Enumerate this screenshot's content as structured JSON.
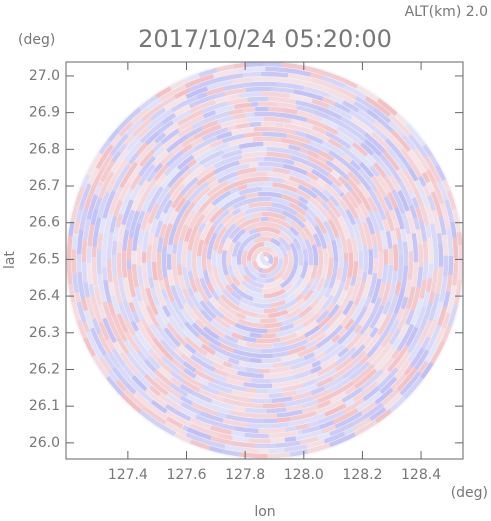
{
  "chart_data": {
    "type": "radar-field",
    "title": "2017/10/24 05:20:00",
    "subtitle": "ALT(km) 2.0",
    "x_label": "lon",
    "y_label": "lat",
    "x_unit": "(deg)",
    "y_unit": "(deg)",
    "xlim": [
      127.189,
      128.543
    ],
    "ylim": [
      25.956,
      27.038
    ],
    "xticks": [
      127.4,
      127.6,
      127.8,
      {
        "value": 128.0,
        "label": "128.0"
      },
      128.2,
      128.4
    ],
    "yticks": [
      {
        "value": 26.0,
        "label": "26.0"
      },
      26.1,
      26.2,
      26.3,
      26.4,
      26.5,
      26.6,
      26.7,
      26.8,
      26.9,
      {
        "value": 27.0,
        "label": "27.0"
      }
    ]
  }
}
